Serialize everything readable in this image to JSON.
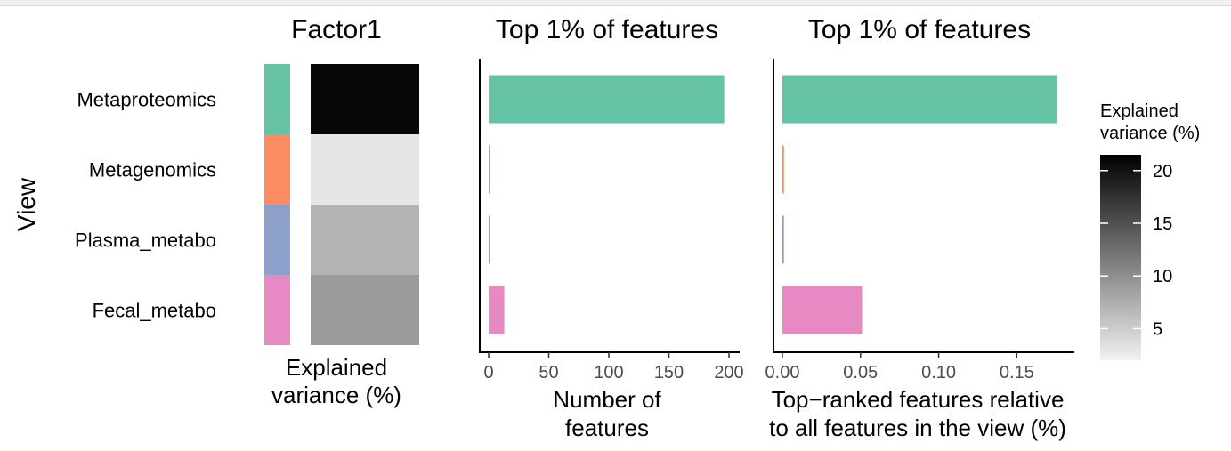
{
  "chart_data": [
    {
      "type": "heatmap",
      "title": "Factor1",
      "ylabel": "View",
      "xlabel": "Explained\nvariance (%)",
      "views": [
        "Metaproteomics",
        "Metagenomics",
        "Plasma_metabo",
        "Fecal_metabo"
      ],
      "view_colors": [
        "#66c2a5",
        "#fc8d62",
        "#8da0cb",
        "#e78ac3"
      ],
      "values": [
        21,
        3,
        7,
        9
      ]
    },
    {
      "type": "bar",
      "title": "Top 1% of features",
      "xlabel": "Number of\nfeatures",
      "categories": [
        "Metaproteomics",
        "Metagenomics",
        "Plasma_metabo",
        "Fecal_metabo"
      ],
      "values": [
        196,
        1,
        1,
        13
      ],
      "colors": [
        "#66c2a5",
        "#fc8d62",
        "#8da0cb",
        "#e78ac3"
      ],
      "xlim": [
        0,
        200
      ],
      "xticks": [
        0,
        50,
        100,
        150,
        200
      ],
      "xtick_labels": [
        "0",
        "50",
        "100",
        "150",
        "200"
      ]
    },
    {
      "type": "bar",
      "title": "Top 1% of features",
      "xlabel": "Top−ranked features relative\nto all features in the view (%)",
      "categories": [
        "Metaproteomics",
        "Metagenomics",
        "Plasma_metabo",
        "Fecal_metabo"
      ],
      "values": [
        0.176,
        0.001,
        0.001,
        0.051
      ],
      "colors": [
        "#66c2a5",
        "#fc8d62",
        "#8da0cb",
        "#e78ac3"
      ],
      "xlim": [
        0,
        0.18
      ],
      "xticks": [
        0,
        0.05,
        0.1,
        0.15
      ],
      "xtick_labels": [
        "0.00",
        "0.05",
        "0.10",
        "0.15"
      ]
    }
  ],
  "legend": {
    "title": "Explained\nvariance (%)",
    "ticks": [
      5,
      10,
      15,
      20
    ],
    "tick_labels": [
      "5",
      "10",
      "15",
      "20"
    ],
    "range": [
      2,
      21.5
    ],
    "low_color": "#f2f2f2",
    "high_color": "#000000"
  }
}
